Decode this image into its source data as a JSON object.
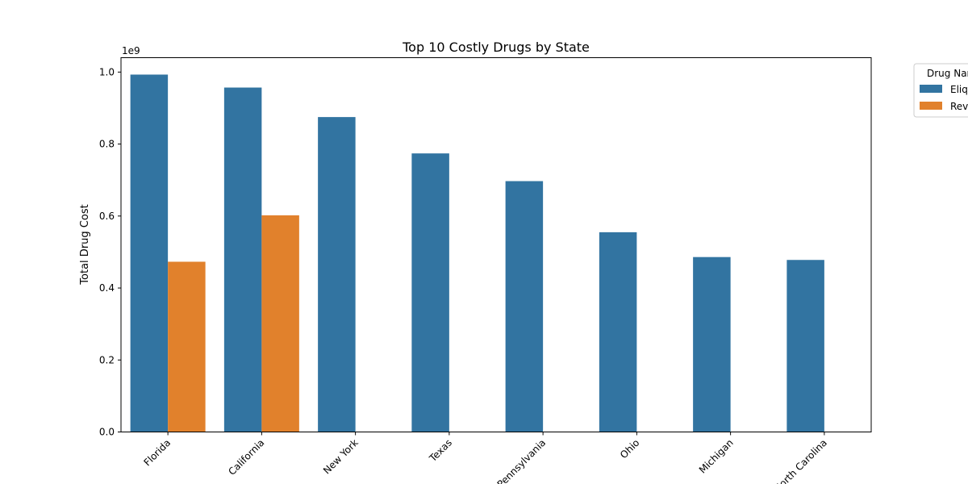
{
  "chart_data": {
    "type": "bar",
    "title": "Top 10 Costly Drugs by State",
    "xlabel": "",
    "ylabel": "Total Drug Cost",
    "offset_label": "1e9",
    "categories": [
      "Florida",
      "California",
      "New York",
      "Texas",
      "Pennsylvania",
      "Ohio",
      "Michigan",
      "North Carolina"
    ],
    "series": [
      {
        "name": "Eliquis",
        "color": "#3274a1",
        "values": [
          0.993,
          0.957,
          0.875,
          0.774,
          0.697,
          0.555,
          0.486,
          0.478
        ]
      },
      {
        "name": "Revlimid",
        "color": "#e1812c",
        "values": [
          0.473,
          0.602,
          null,
          null,
          null,
          null,
          null,
          null
        ]
      }
    ],
    "value_scale": 1000000000.0,
    "ylim": [
      0,
      1.04
    ],
    "yticks": [
      0.0,
      0.2,
      0.4,
      0.6,
      0.8,
      1.0
    ],
    "ytick_labels": [
      "0.0",
      "0.2",
      "0.4",
      "0.6",
      "0.8",
      "1.0"
    ],
    "grid": false,
    "legend": {
      "title": "Drug Name",
      "placement": "outside top-right"
    }
  }
}
